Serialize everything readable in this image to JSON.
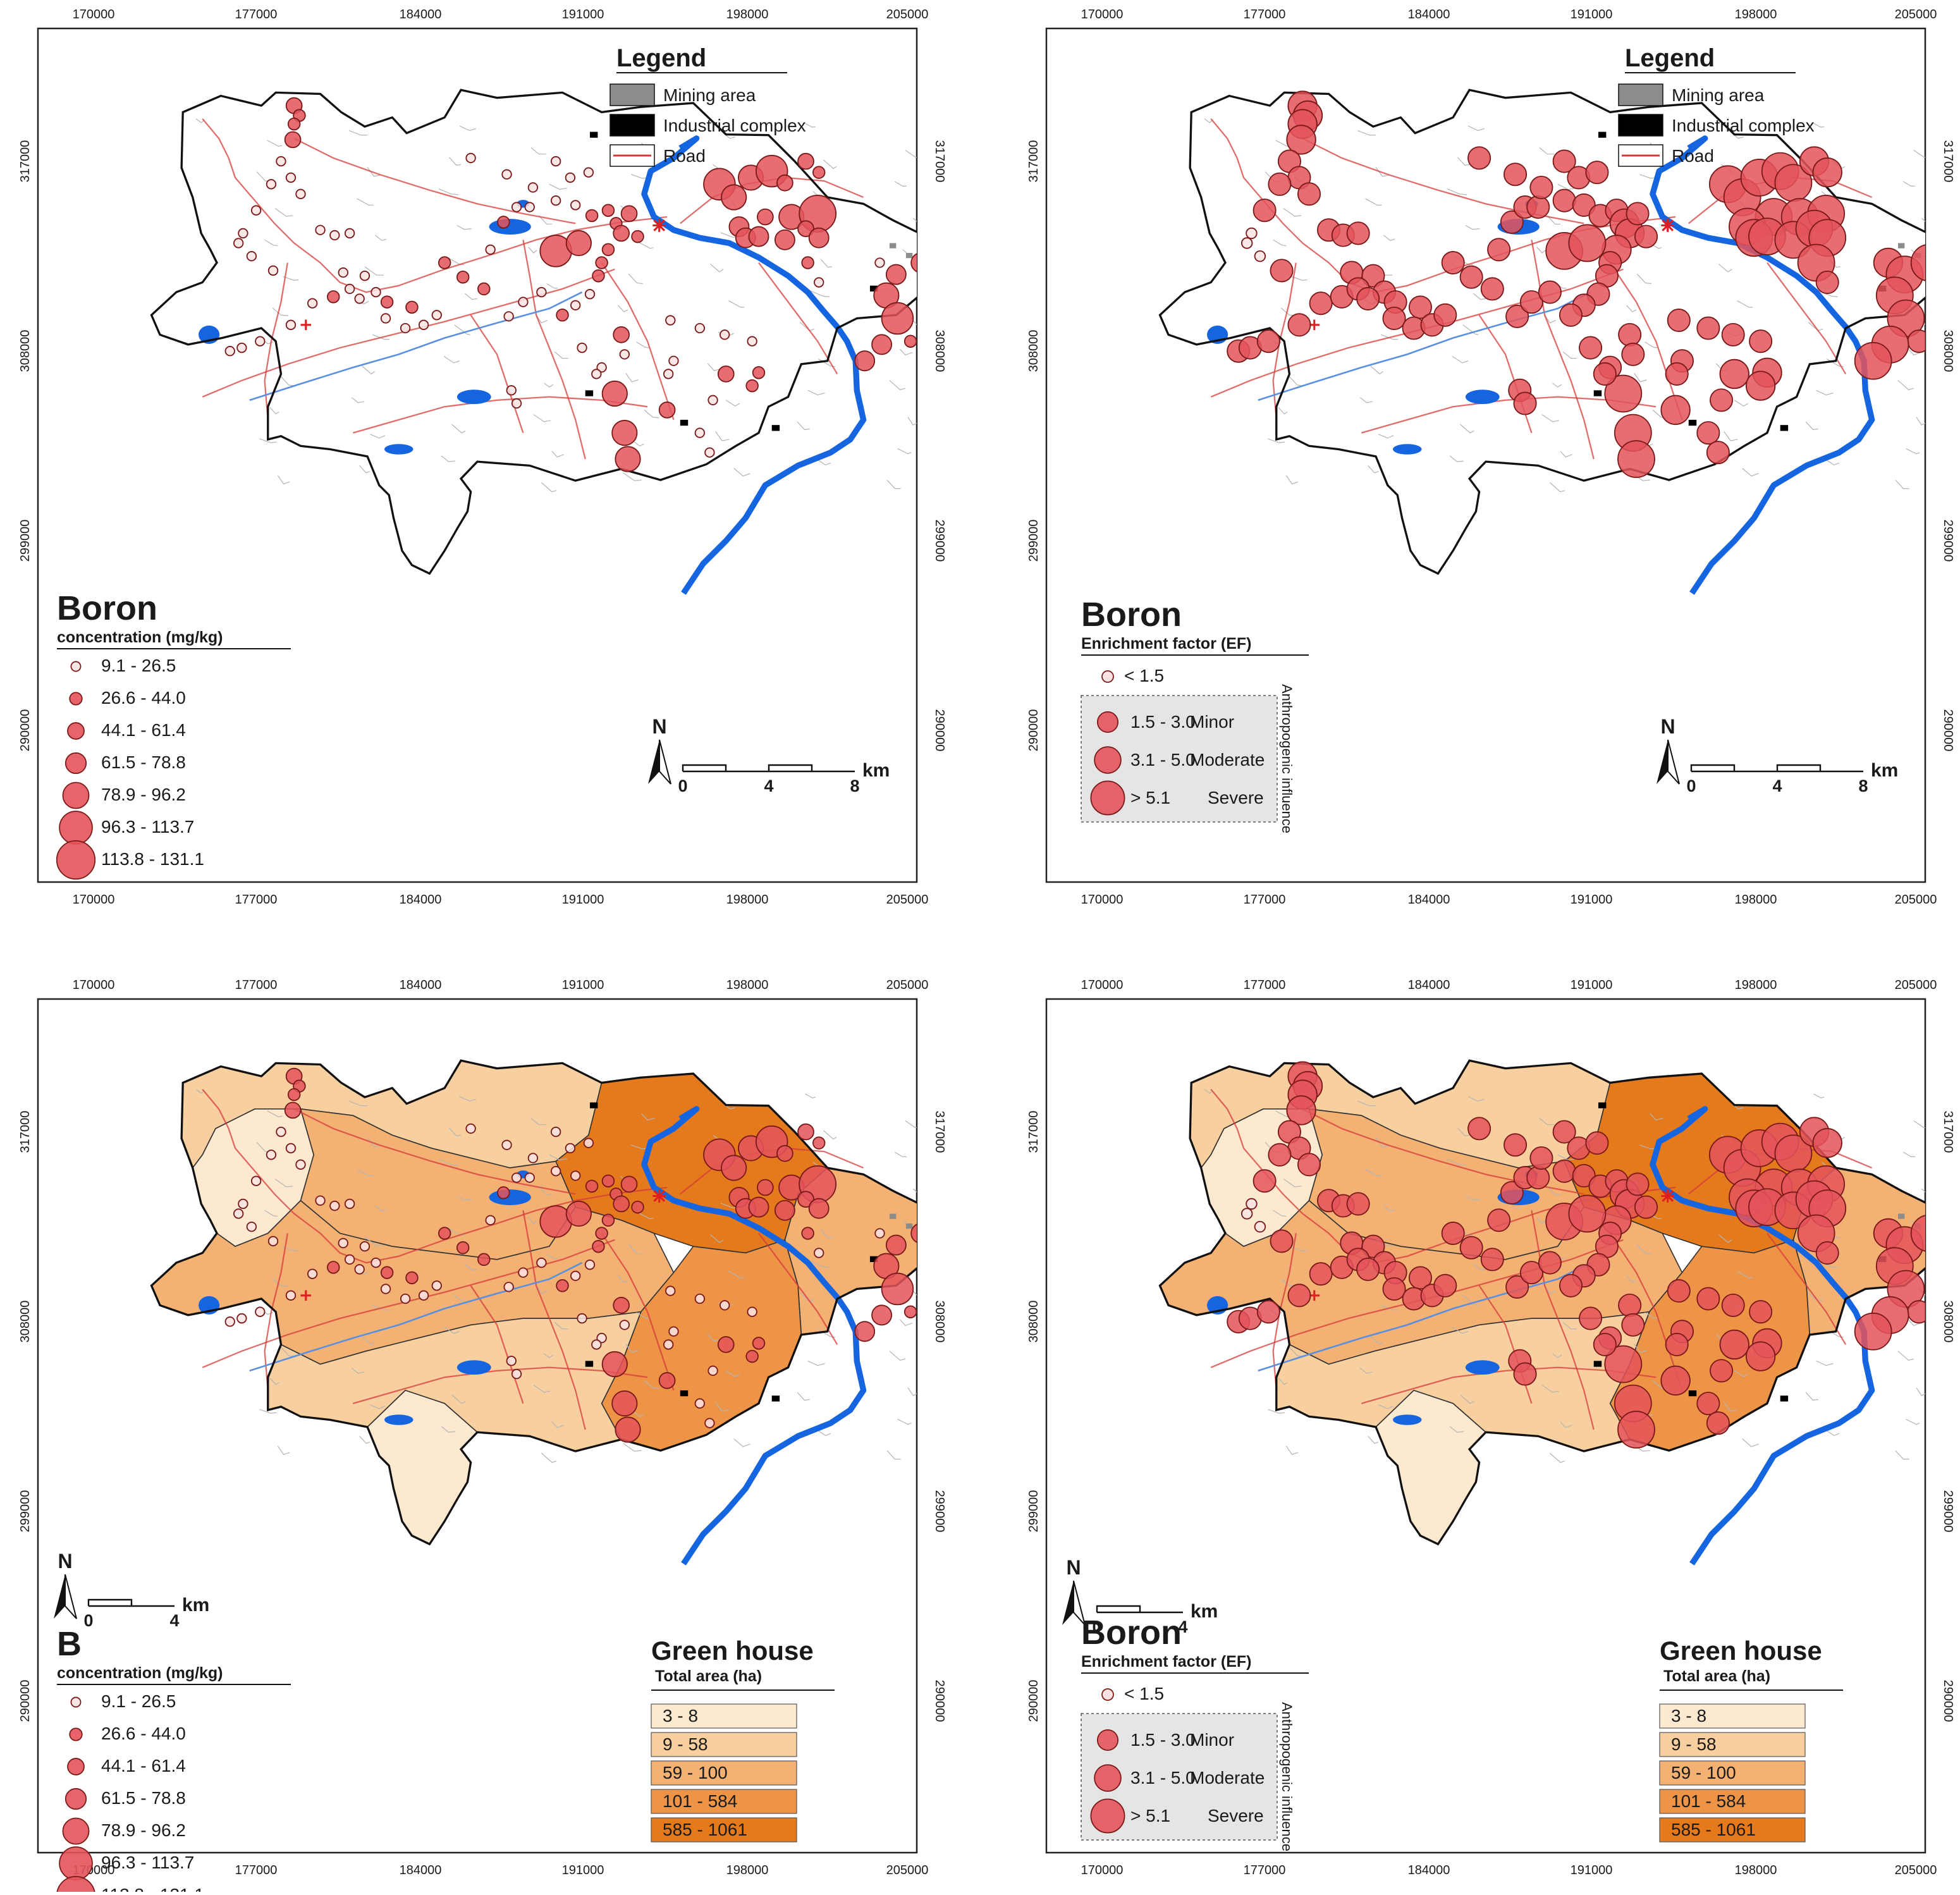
{
  "x_ticks": [
    "170000",
    "177000",
    "184000",
    "191000",
    "198000",
    "205000"
  ],
  "y_ticks": [
    "317000",
    "308000",
    "299000",
    "290000"
  ],
  "legend": {
    "title": "Legend",
    "items": [
      {
        "label": "Mining area",
        "color": "#8c8c8c"
      },
      {
        "label": "Industrial complex",
        "color": "#000000"
      },
      {
        "label": "Road",
        "color": "#d63a3a"
      }
    ]
  },
  "concentration": {
    "title": "Boron",
    "title_short": "B",
    "subtitle": "concentration (mg/kg)",
    "classes": [
      "9.1 - 26.5",
      "26.6 - 44.0",
      "44.1 - 61.4",
      "61.5 - 78.8",
      "78.9 - 96.2",
      "96.3 - 113.7",
      "113.8 - 131.1"
    ]
  },
  "enrichment": {
    "title": "Boron",
    "subtitle": "Enrichment factor (EF)",
    "low_label": "< 1.5",
    "group_label": "Anthropogenic influence",
    "classes": [
      {
        "range": "1.5 - 3.0",
        "label": "Minor"
      },
      {
        "range": "3.1 - 5.0",
        "label": "Moderate"
      },
      {
        "range": "> 5.1",
        "label": "Severe"
      }
    ]
  },
  "greenhouse": {
    "title": "Green house",
    "subtitle": "Total area (ha)",
    "classes": [
      {
        "label": "3 - 8",
        "color": "#fde9cf"
      },
      {
        "label": "9 - 58",
        "color": "#f8cf9e"
      },
      {
        "label": "59 - 100",
        "color": "#f3b173"
      },
      {
        "label": "101 - 584",
        "color": "#ee9447"
      },
      {
        "label": "585 - 1061",
        "color": "#e57a1c"
      }
    ]
  },
  "scale": {
    "north": "N",
    "unit": "km",
    "ticks_long": [
      "0",
      "4",
      "8"
    ],
    "ticks_short": [
      "0",
      "4"
    ]
  },
  "colors": {
    "symbol_fill": "#e4545a",
    "symbol_stroke": "#7a1a1a",
    "river": "#1565e0",
    "road": "#d63a3a"
  }
}
